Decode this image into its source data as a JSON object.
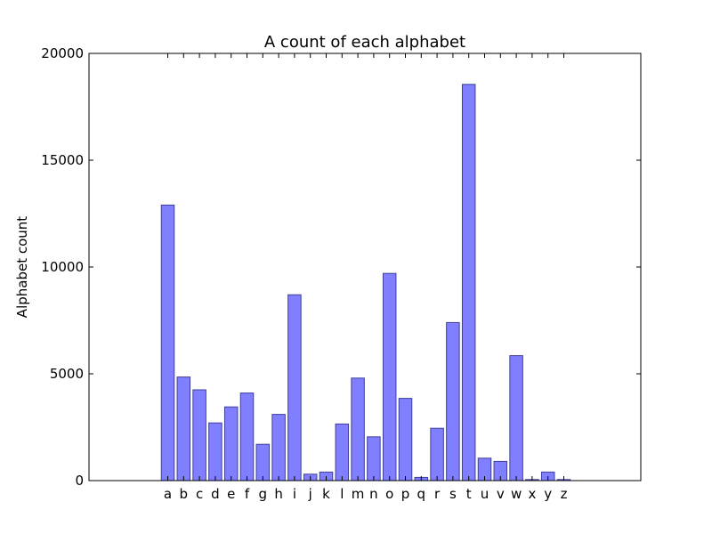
{
  "chart_data": {
    "type": "bar",
    "title": "A count of each alphabet",
    "xlabel": "",
    "ylabel": "Alphabet count",
    "categories": [
      "a",
      "b",
      "c",
      "d",
      "e",
      "f",
      "g",
      "h",
      "i",
      "j",
      "k",
      "l",
      "m",
      "n",
      "o",
      "p",
      "q",
      "r",
      "s",
      "t",
      "u",
      "v",
      "w",
      "x",
      "y",
      "z"
    ],
    "values": [
      12900,
      4850,
      4250,
      2700,
      3450,
      4100,
      1700,
      3100,
      8700,
      300,
      400,
      2650,
      4800,
      2050,
      9700,
      3850,
      150,
      2450,
      7400,
      18550,
      1050,
      900,
      5850,
      50,
      400,
      50
    ],
    "ylim": [
      0,
      20000
    ],
    "yticks": [
      0,
      5000,
      10000,
      15000,
      20000
    ],
    "bar_color": "#7f7fff",
    "bar_edge_color": "#3f3f99",
    "grid": false,
    "legend": "none"
  }
}
